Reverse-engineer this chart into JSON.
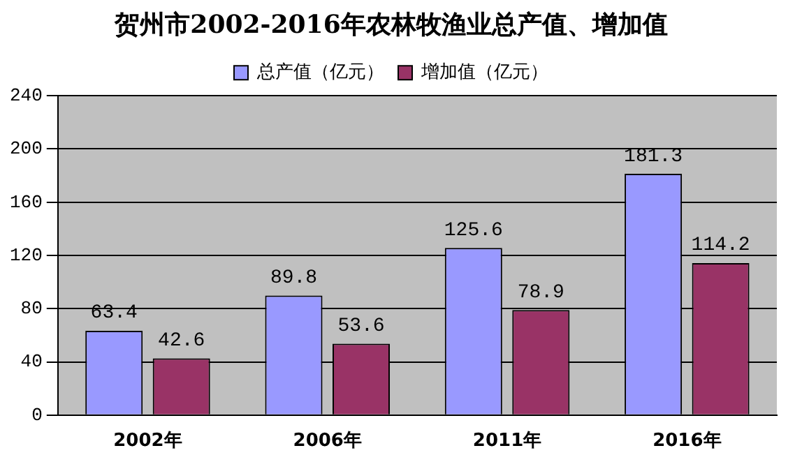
{
  "chart_data": {
    "type": "bar",
    "title": "贺州市2002-2016年农林牧渔业总产值、增加值",
    "categories": [
      "2002年",
      "2006年",
      "2011年",
      "2016年"
    ],
    "series": [
      {
        "name": "总产值（亿元）",
        "color": "#9999ff",
        "values": [
          63.4,
          89.8,
          125.6,
          181.3
        ]
      },
      {
        "name": "增加值（亿元）",
        "color": "#993366",
        "values": [
          42.6,
          53.6,
          78.9,
          114.2
        ]
      }
    ],
    "ylim": [
      0,
      240
    ],
    "yticks": [
      0,
      40,
      80,
      120,
      160,
      200,
      240
    ],
    "grid": "y",
    "legend": "top",
    "data_labels": true
  }
}
